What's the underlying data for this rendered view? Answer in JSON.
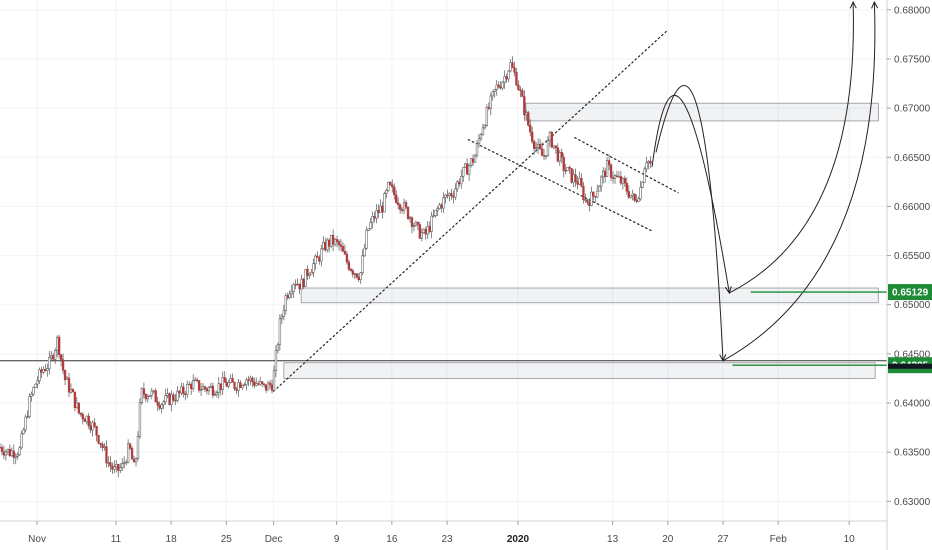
{
  "chart_data": {
    "type": "candlestick",
    "title": "",
    "xlabel": "",
    "ylabel": "",
    "ylim": [
      0.628,
      0.681
    ],
    "y_ticks": [
      0.63,
      0.635,
      0.64,
      0.645,
      0.65,
      0.655,
      0.66,
      0.665,
      0.67,
      0.675,
      0.68
    ],
    "y_tick_labels": [
      "0.63000",
      "0.63500",
      "0.64000",
      "0.64500",
      "0.65000",
      "0.65500",
      "0.66000",
      "0.66500",
      "0.67000",
      "0.67500",
      "0.68000"
    ],
    "x_ticks": [
      {
        "label": "Nov",
        "day": 1,
        "bold": false
      },
      {
        "label": "11",
        "day": 11,
        "bold": false
      },
      {
        "label": "18",
        "day": 18,
        "bold": false
      },
      {
        "label": "25",
        "day": 25,
        "bold": false
      },
      {
        "label": "Dec",
        "day": 31,
        "bold": false
      },
      {
        "label": "9",
        "day": 39,
        "bold": false
      },
      {
        "label": "16",
        "day": 46,
        "bold": false
      },
      {
        "label": "23",
        "day": 53,
        "bold": false
      },
      {
        "label": "2020",
        "day": 62,
        "bold": true
      },
      {
        "label": "13",
        "day": 74,
        "bold": false
      },
      {
        "label": "20",
        "day": 81,
        "bold": false
      },
      {
        "label": "27",
        "day": 88,
        "bold": false
      },
      {
        "label": "Feb",
        "day": 95,
        "bold": false
      },
      {
        "label": "10",
        "day": 104,
        "bold": false
      }
    ],
    "x_range_days": [
      -3.7,
      108.8
    ],
    "price_path": [
      [
        -3.7,
        0.6355
      ],
      [
        -2.5,
        0.635
      ],
      [
        -1.2,
        0.6352
      ],
      [
        0.0,
        0.64
      ],
      [
        0.8,
        0.642
      ],
      [
        1.8,
        0.6435
      ],
      [
        2.6,
        0.644
      ],
      [
        3.6,
        0.6465
      ],
      [
        4.5,
        0.6425
      ],
      [
        5.4,
        0.641
      ],
      [
        6.3,
        0.639
      ],
      [
        7.3,
        0.6385
      ],
      [
        8.2,
        0.6375
      ],
      [
        9.1,
        0.636
      ],
      [
        10.0,
        0.634
      ],
      [
        10.9,
        0.633
      ],
      [
        11.8,
        0.6335
      ],
      [
        12.7,
        0.6355
      ],
      [
        13.4,
        0.633
      ],
      [
        14.2,
        0.641
      ],
      [
        15.4,
        0.641
      ],
      [
        16.7,
        0.64
      ],
      [
        18.0,
        0.6405
      ],
      [
        19.3,
        0.641
      ],
      [
        20.6,
        0.642
      ],
      [
        22.0,
        0.6415
      ],
      [
        23.4,
        0.6415
      ],
      [
        24.8,
        0.642
      ],
      [
        26.1,
        0.6418
      ],
      [
        27.5,
        0.6425
      ],
      [
        28.9,
        0.642
      ],
      [
        29.8,
        0.6415
      ],
      [
        30.9,
        0.642
      ],
      [
        31.8,
        0.648
      ],
      [
        32.6,
        0.651
      ],
      [
        33.6,
        0.6525
      ],
      [
        34.5,
        0.652
      ],
      [
        35.4,
        0.6535
      ],
      [
        36.5,
        0.6545
      ],
      [
        37.5,
        0.656
      ],
      [
        38.4,
        0.6565
      ],
      [
        39.3,
        0.656
      ],
      [
        40.2,
        0.6545
      ],
      [
        41.1,
        0.6535
      ],
      [
        42.0,
        0.653
      ],
      [
        42.9,
        0.6575
      ],
      [
        43.8,
        0.659
      ],
      [
        44.8,
        0.66
      ],
      [
        45.6,
        0.662
      ],
      [
        46.5,
        0.661
      ],
      [
        47.4,
        0.66
      ],
      [
        48.3,
        0.659
      ],
      [
        49.3,
        0.6575
      ],
      [
        50.2,
        0.657
      ],
      [
        51.1,
        0.6585
      ],
      [
        52.0,
        0.66
      ],
      [
        52.9,
        0.661
      ],
      [
        53.8,
        0.6615
      ],
      [
        54.7,
        0.663
      ],
      [
        55.6,
        0.664
      ],
      [
        56.5,
        0.665
      ],
      [
        57.4,
        0.668
      ],
      [
        58.3,
        0.67
      ],
      [
        59.2,
        0.672
      ],
      [
        60.2,
        0.673
      ],
      [
        61.0,
        0.6745
      ],
      [
        61.8,
        0.673
      ],
      [
        62.6,
        0.6705
      ],
      [
        63.4,
        0.668
      ],
      [
        64.3,
        0.666
      ],
      [
        65.2,
        0.665
      ],
      [
        66.1,
        0.667
      ],
      [
        66.9,
        0.6655
      ],
      [
        67.8,
        0.664
      ],
      [
        68.8,
        0.663
      ],
      [
        69.7,
        0.6625
      ],
      [
        70.6,
        0.6605
      ],
      [
        71.5,
        0.661
      ],
      [
        72.4,
        0.6625
      ],
      [
        73.3,
        0.664
      ],
      [
        74.2,
        0.663
      ],
      [
        75.1,
        0.6625
      ],
      [
        76.0,
        0.6615
      ],
      [
        76.8,
        0.6605
      ],
      [
        77.6,
        0.662
      ],
      [
        78.2,
        0.665
      ],
      [
        79.0,
        0.664
      ]
    ],
    "zones": [
      {
        "from_day": 63.0,
        "to_day": 107.7,
        "low": 0.6687,
        "high": 0.6705
      },
      {
        "from_day": 34.5,
        "to_day": 107.7,
        "low": 0.6502,
        "high": 0.6517
      },
      {
        "from_day": 32.3,
        "to_day": 107.3,
        "low": 0.6425,
        "high": 0.6441
      }
    ],
    "level_lines": [
      {
        "price": 0.64385,
        "label": "0.64385",
        "from_day": 89.2,
        "color": "#1e8c37"
      },
      {
        "price": 0.65129,
        "label": "0.65129",
        "from_day": 91.5,
        "color": "#1e8c37"
      }
    ],
    "horizontal_line": {
      "price": 0.6443,
      "color": "#333333"
    },
    "trendlines": [
      {
        "from": [
          31.0,
          0.6412
        ],
        "to": [
          80.8,
          0.6778
        ]
      },
      {
        "from": [
          55.7,
          0.6668
        ],
        "to": [
          79.0,
          0.6575
        ]
      },
      {
        "from": [
          69.2,
          0.667
        ],
        "to": [
          82.3,
          0.6614
        ]
      }
    ],
    "projection_paths": [
      [
        [
          79.0,
          0.664
        ],
        [
          83.0,
          0.6705
        ],
        [
          88.8,
          0.6512
        ]
      ],
      [
        [
          79.5,
          0.6655
        ],
        [
          84.6,
          0.6705
        ],
        [
          88.0,
          0.6443
        ]
      ],
      [
        [
          88.8,
          0.6512
        ],
        [
          101.0,
          0.662
        ],
        [
          104.5,
          0.6808
        ]
      ],
      [
        [
          88.0,
          0.6443
        ],
        [
          103.0,
          0.658
        ],
        [
          107.2,
          0.6808
        ]
      ]
    ],
    "colors": {
      "up": "#26a69a",
      "down": "#ef5350",
      "candle": "#555555",
      "accent": "#1e8c37",
      "last": "#131722"
    }
  }
}
